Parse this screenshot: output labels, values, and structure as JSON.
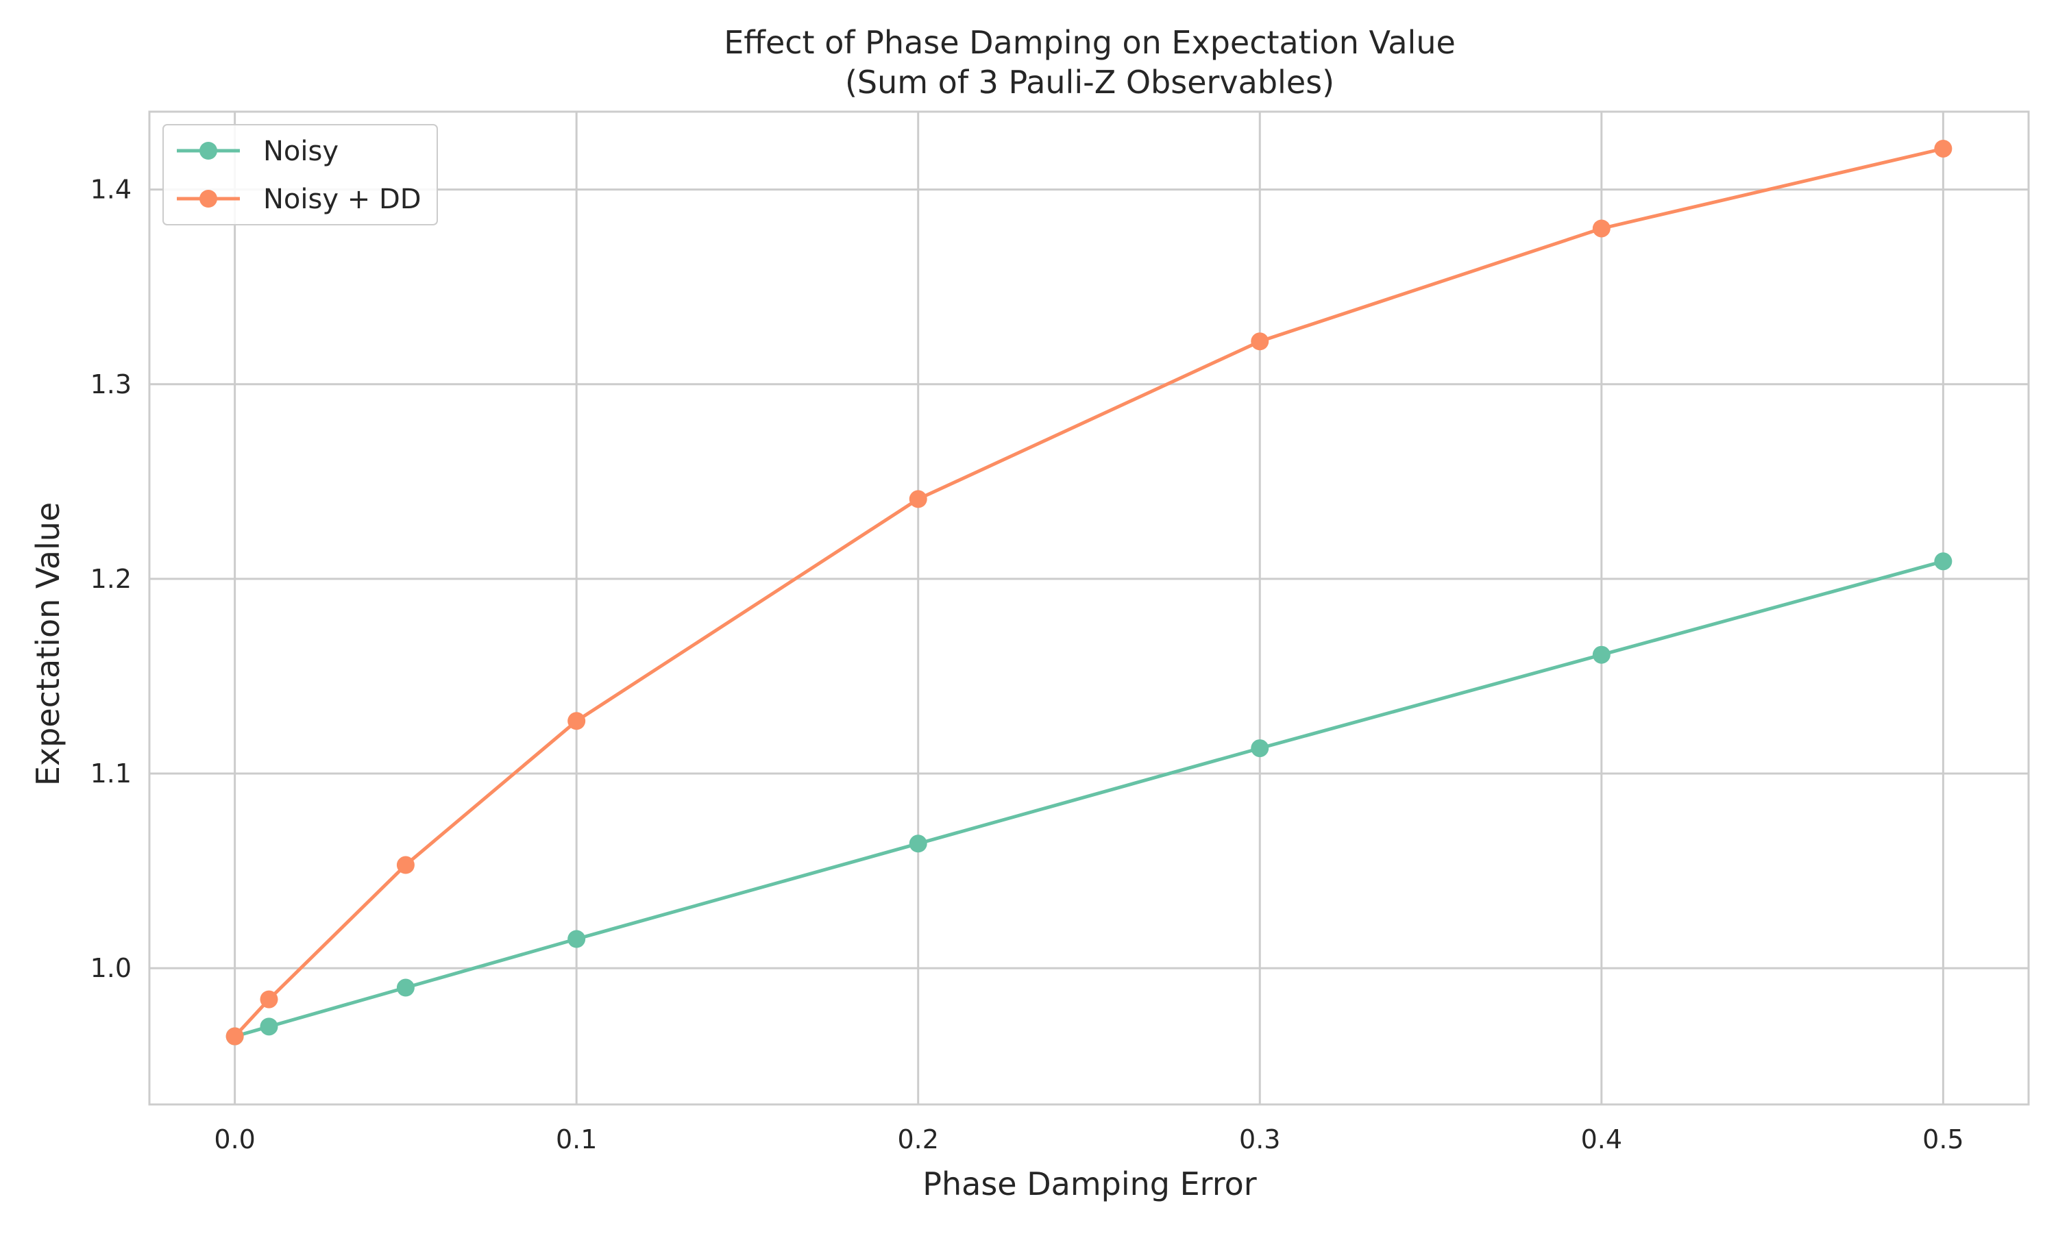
{
  "chart_data": {
    "type": "line",
    "title": "Effect of Phase Damping on Expectation Value",
    "subtitle": "(Sum of 3 Pauli-Z Observables)",
    "xlabel": "Phase Damping Error",
    "ylabel": "Expectation Value",
    "xlim": [
      -0.025,
      0.525
    ],
    "ylim": [
      0.93,
      1.44
    ],
    "xticks": [
      0.0,
      0.1,
      0.2,
      0.3,
      0.4,
      0.5
    ],
    "xtick_labels": [
      "0.0",
      "0.1",
      "0.2",
      "0.3",
      "0.4",
      "0.5"
    ],
    "yticks": [
      1.0,
      1.1,
      1.2,
      1.3,
      1.4
    ],
    "ytick_labels": [
      "1.0",
      "1.1",
      "1.2",
      "1.3",
      "1.4"
    ],
    "grid": true,
    "legend_position": "top-left",
    "x": [
      0.0,
      0.01,
      0.05,
      0.1,
      0.2,
      0.3,
      0.4,
      0.5
    ],
    "series": [
      {
        "name": "Noisy",
        "color": "#66c2a5",
        "values": [
          0.965,
          0.97,
          0.99,
          1.015,
          1.064,
          1.113,
          1.161,
          1.209
        ]
      },
      {
        "name": "Noisy + DD",
        "color": "#fc8d62",
        "values": [
          0.965,
          0.984,
          1.053,
          1.127,
          1.241,
          1.322,
          1.38,
          1.421
        ]
      }
    ]
  }
}
